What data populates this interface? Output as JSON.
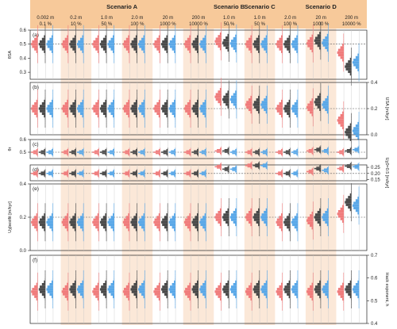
{
  "colors": {
    "header_bg": "#f7c99a",
    "band": "#fbe8d8",
    "red": "#f07c7c",
    "black": "#4a4a4a",
    "blue": "#5aa8e8",
    "dashed": "#555555"
  },
  "scenarios": [
    "Scenario A",
    "Scenario B",
    "Scenario C",
    "Scenario D"
  ],
  "conditions": [
    {
      "scenario": "A",
      "line1": "0.002 m",
      "line2": "0.1 %",
      "shaded": false
    },
    {
      "scenario": "A",
      "line1": "0.2 m",
      "line2": "10 %",
      "shaded": true
    },
    {
      "scenario": "A",
      "line1": "1.0 m",
      "line2": "50 %",
      "shaded": false
    },
    {
      "scenario": "A",
      "line1": "2.0 m",
      "line2": "100 %",
      "shaded": true
    },
    {
      "scenario": "A",
      "line1": "20 m",
      "line2": "1000 %",
      "shaded": false
    },
    {
      "scenario": "A",
      "line1": "200 m",
      "line2": "10000 %",
      "shaded": true
    },
    {
      "scenario": "B",
      "line1": "1.0 m",
      "line2": "50 %",
      "shaded": false
    },
    {
      "scenario": "C",
      "line1": "1.0 m",
      "line2": "50 %",
      "shaded": true
    },
    {
      "scenario": "D",
      "line1": "2.0 m",
      "line2": "100 %",
      "shaded": false
    },
    {
      "scenario": "D",
      "line1": "20 m",
      "line2": "1000 %",
      "shaded": true
    },
    {
      "scenario": "D",
      "line1": "200 m",
      "line2": "10000 %",
      "shaded": false
    }
  ],
  "chart_data": {
    "type": "violin-histogram",
    "series_colors": [
      "red",
      "black",
      "blue"
    ],
    "panels": [
      {
        "label": "(a)",
        "axis_side": "left",
        "ylabel": "θSA",
        "ylim": [
          0.25,
          0.6
        ],
        "ticks": [
          "0.6",
          "0.5",
          "0.4",
          "0.3"
        ],
        "tick_values": [
          0.6,
          0.5,
          0.4,
          0.3
        ],
        "ref": 0.5,
        "medians": [
          [
            0.5,
            0.5,
            0.5
          ],
          [
            0.5,
            0.5,
            0.5
          ],
          [
            0.5,
            0.5,
            0.5
          ],
          [
            0.5,
            0.5,
            0.5
          ],
          [
            0.5,
            0.5,
            0.5
          ],
          [
            0.5,
            0.5,
            0.5
          ],
          [
            0.52,
            0.51,
            0.505
          ],
          [
            0.5,
            0.5,
            0.5
          ],
          [
            0.5,
            0.5,
            0.5
          ],
          [
            0.505,
            0.525,
            0.51
          ],
          [
            0.44,
            0.34,
            0.37
          ]
        ]
      },
      {
        "label": "(b)",
        "axis_side": "right",
        "ylabel": "USA [m/kyr]",
        "ylim": [
          0,
          0.4
        ],
        "ticks": [
          "0.4",
          "0.2",
          "0.0"
        ],
        "tick_values": [
          0.4,
          0.2,
          0.0
        ],
        "ref": 0.2,
        "medians": [
          [
            0.2,
            0.2,
            0.2
          ],
          [
            0.2,
            0.2,
            0.2
          ],
          [
            0.2,
            0.2,
            0.2
          ],
          [
            0.2,
            0.2,
            0.2
          ],
          [
            0.2,
            0.2,
            0.2
          ],
          [
            0.2,
            0.2,
            0.2
          ],
          [
            0.29,
            0.27,
            0.27
          ],
          [
            0.23,
            0.23,
            0.23
          ],
          [
            0.2,
            0.2,
            0.2
          ],
          [
            0.21,
            0.25,
            0.23
          ],
          [
            0.11,
            0.02,
            0.03
          ]
        ]
      },
      {
        "label": "(c)",
        "axis_side": "left",
        "ylabel": "θr",
        "ylim": [
          0.45,
          0.6
        ],
        "ticks": [
          "0.6",
          "0.5"
        ],
        "tick_values": [
          0.6,
          0.5
        ],
        "ref": 0.5,
        "medians": [
          [
            0.5,
            0.5,
            0.5
          ],
          [
            0.5,
            0.5,
            0.5
          ],
          [
            0.5,
            0.5,
            0.5
          ],
          [
            0.5,
            0.5,
            0.5
          ],
          [
            0.5,
            0.5,
            0.5
          ],
          [
            0.5,
            0.5,
            0.5
          ],
          [
            0.51,
            0.51,
            0.5
          ],
          [
            0.5,
            0.5,
            0.5
          ],
          [
            0.5,
            0.5,
            0.5
          ],
          [
            0.51,
            0.52,
            0.51
          ],
          [
            0.5,
            0.51,
            0.52
          ]
        ]
      },
      {
        "label": "(d)",
        "axis_side": "right",
        "ylabel": "Uχ0=0.5 [m/kyr]",
        "ylim": [
          0.14,
          0.27
        ],
        "ticks": [
          "0.25",
          "0.20",
          "0.15"
        ],
        "tick_values": [
          0.25,
          0.2,
          0.15
        ],
        "ref": 0.2,
        "medians": [
          [
            0.2,
            0.2,
            0.2
          ],
          [
            0.2,
            0.2,
            0.2
          ],
          [
            0.2,
            0.2,
            0.2
          ],
          [
            0.2,
            0.2,
            0.2
          ],
          [
            0.2,
            0.2,
            0.2
          ],
          [
            0.2,
            0.2,
            0.2
          ],
          [
            0.255,
            0.235,
            0.235
          ],
          [
            0.265,
            0.265,
            0.265
          ],
          [
            0.2,
            0.2,
            0.2
          ],
          [
            0.215,
            0.24,
            0.225
          ],
          [
            0.24,
            0.26,
            0.255
          ]
        ]
      },
      {
        "label": "(e)",
        "axis_side": "left",
        "ylabel": "Uχbestfit [m/kyr]",
        "ylim": [
          0,
          0.4
        ],
        "ticks": [
          "0.4",
          "0.2",
          "0.0"
        ],
        "tick_values": [
          0.4,
          0.2,
          0.0
        ],
        "ref": 0.2,
        "medians": [
          [
            0.17,
            0.17,
            0.17
          ],
          [
            0.17,
            0.17,
            0.17
          ],
          [
            0.17,
            0.17,
            0.17
          ],
          [
            0.17,
            0.17,
            0.17
          ],
          [
            0.17,
            0.17,
            0.17
          ],
          [
            0.17,
            0.17,
            0.17
          ],
          [
            0.2,
            0.2,
            0.2
          ],
          [
            0.2,
            0.2,
            0.2
          ],
          [
            0.17,
            0.17,
            0.17
          ],
          [
            0.18,
            0.2,
            0.2
          ],
          [
            0.22,
            0.29,
            0.27
          ]
        ]
      },
      {
        "label": "(f)",
        "axis_side": "right",
        "ylabel": "Hack exponent, h",
        "ylim": [
          0.4,
          0.7
        ],
        "ticks": [
          "0.7",
          "0.6",
          "0.5",
          "0.4"
        ],
        "tick_values": [
          0.7,
          0.6,
          0.5,
          0.4
        ],
        "ref": null,
        "medians": [
          [
            0.54,
            0.55,
            0.55
          ],
          [
            0.54,
            0.55,
            0.55
          ],
          [
            0.54,
            0.55,
            0.55
          ],
          [
            0.54,
            0.55,
            0.55
          ],
          [
            0.54,
            0.55,
            0.55
          ],
          [
            0.54,
            0.55,
            0.55
          ],
          [
            0.54,
            0.55,
            0.55
          ],
          [
            0.54,
            0.55,
            0.55
          ],
          [
            0.54,
            0.55,
            0.55
          ],
          [
            0.54,
            0.55,
            0.55
          ],
          [
            0.54,
            0.55,
            0.55
          ]
        ]
      }
    ]
  }
}
